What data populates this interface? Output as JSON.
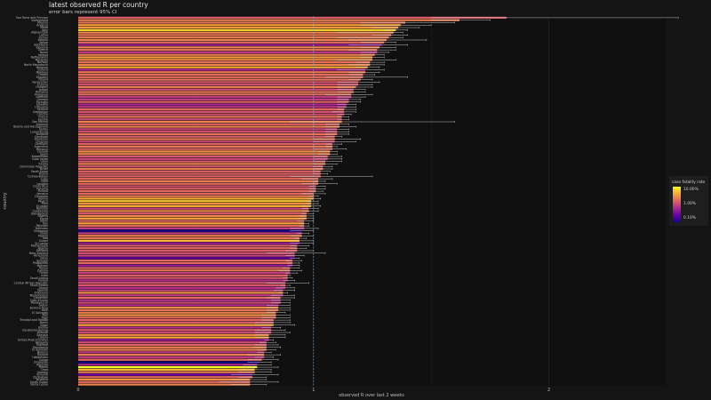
{
  "chart_data": {
    "type": "bar",
    "orientation": "horizontal",
    "title": "latest observed R per country",
    "subtitle": "error bars represent 95% CI",
    "xlabel": "observed R over last 2 weeks",
    "ylabel": "country",
    "xlim": [
      0,
      2.5
    ],
    "xticks": [
      "0",
      "1",
      "2"
    ],
    "reference_line": 1,
    "legend": {
      "title": "case fatality rate",
      "placement": "right",
      "ticks": [
        "10.00%",
        "1.00%",
        "0.10%"
      ],
      "scale_colors": [
        "#0d0887",
        "#6a00a8",
        "#b12a90",
        "#e16462",
        "#fca636",
        "#f0f921"
      ]
    },
    "series": [
      {
        "country": "Sao Tome and Principe",
        "r": 1.82,
        "lo": 1.5,
        "hi": 2.55,
        "cfr": 1.5
      },
      {
        "country": "Switzerland",
        "r": 1.62,
        "lo": 1.5,
        "hi": 1.75,
        "cfr": 3.0
      },
      {
        "country": "Albania",
        "r": 1.39,
        "lo": 1.2,
        "hi": 1.6,
        "cfr": 2.4
      },
      {
        "country": "Andorra",
        "r": 1.37,
        "lo": 1.2,
        "hi": 1.5,
        "cfr": 5.5
      },
      {
        "country": "Malta",
        "r": 1.36,
        "lo": 1.25,
        "hi": 1.45,
        "cfr": 4.5
      },
      {
        "country": "Italy",
        "r": 1.35,
        "lo": 1.3,
        "hi": 1.4,
        "cfr": 12.0
      },
      {
        "country": "Afghanistan",
        "r": 1.34,
        "lo": 1.1,
        "hi": 1.38,
        "cfr": 3.5
      },
      {
        "country": "Latvia",
        "r": 1.33,
        "lo": 1.25,
        "hi": 1.4,
        "cfr": 2.5
      },
      {
        "country": "Turkey",
        "r": 1.32,
        "lo": 1.1,
        "hi": 1.38,
        "cfr": 2.8
      },
      {
        "country": "Kosovo",
        "r": 1.31,
        "lo": 1.15,
        "hi": 1.48,
        "cfr": 3.0
      },
      {
        "country": "Belize",
        "r": 1.3,
        "lo": 1.2,
        "hi": 1.35,
        "cfr": 2.0
      },
      {
        "country": "Botswana",
        "r": 1.29,
        "lo": 1.15,
        "hi": 1.4,
        "cfr": 0.4
      },
      {
        "country": "Slovenia",
        "r": 1.28,
        "lo": 1.2,
        "hi": 1.35,
        "cfr": 3.2
      },
      {
        "country": "Greece",
        "r": 1.27,
        "lo": 1.15,
        "hi": 1.35,
        "cfr": 2.3
      },
      {
        "country": "Nepal",
        "r": 1.27,
        "lo": 1.2,
        "hi": 1.32,
        "cfr": 0.7
      },
      {
        "country": "Ireland",
        "r": 1.26,
        "lo": 1.2,
        "hi": 1.3,
        "cfr": 2.8
      },
      {
        "country": "Netherlands",
        "r": 1.25,
        "lo": 1.2,
        "hi": 1.3,
        "cfr": 5.0
      },
      {
        "country": "Mongolia",
        "r": 1.25,
        "lo": 1.1,
        "hi": 1.35,
        "cfr": 3.5
      },
      {
        "country": "Norway",
        "r": 1.24,
        "lo": 1.18,
        "hi": 1.3,
        "cfr": 2.2
      },
      {
        "country": "North Macedonia",
        "r": 1.24,
        "lo": 1.15,
        "hi": 1.3,
        "cfr": 3.3
      },
      {
        "country": "Belgium",
        "r": 1.23,
        "lo": 1.18,
        "hi": 1.28,
        "cfr": 6.5
      },
      {
        "country": "Iceland",
        "r": 1.22,
        "lo": 1.1,
        "hi": 1.3,
        "cfr": 0.6
      },
      {
        "country": "Moldova",
        "r": 1.22,
        "lo": 1.15,
        "hi": 1.28,
        "cfr": 2.6
      },
      {
        "country": "Croatia",
        "r": 1.21,
        "lo": 1.15,
        "hi": 1.26,
        "cfr": 2.2
      },
      {
        "country": "Eswatini",
        "r": 1.21,
        "lo": 1.05,
        "hi": 1.4,
        "cfr": 2.0
      },
      {
        "country": "Poland",
        "r": 1.2,
        "lo": 1.15,
        "hi": 1.25,
        "cfr": 2.4
      },
      {
        "country": "Kyrgyzstan",
        "r": 1.19,
        "lo": 1.1,
        "hi": 1.28,
        "cfr": 1.4
      },
      {
        "country": "Estonia",
        "r": 1.19,
        "lo": 1.1,
        "hi": 1.25,
        "cfr": 1.3
      },
      {
        "country": "Hungary",
        "r": 1.18,
        "lo": 1.1,
        "hi": 1.25,
        "cfr": 2.9
      },
      {
        "country": "Jordan",
        "r": 1.17,
        "lo": 1.1,
        "hi": 1.22,
        "cfr": 1.1
      },
      {
        "country": "Romania",
        "r": 1.17,
        "lo": 1.1,
        "hi": 1.22,
        "cfr": 2.5
      },
      {
        "country": "Paraguay",
        "r": 1.16,
        "lo": 1.05,
        "hi": 1.25,
        "cfr": 2.1
      },
      {
        "country": "Lebanon",
        "r": 1.16,
        "lo": 1.1,
        "hi": 1.22,
        "cfr": 0.8
      },
      {
        "country": "Georgia",
        "r": 1.15,
        "lo": 1.1,
        "hi": 1.2,
        "cfr": 0.8
      },
      {
        "country": "Portugal",
        "r": 1.15,
        "lo": 1.1,
        "hi": 1.2,
        "cfr": 1.7
      },
      {
        "country": "Slovakia",
        "r": 1.14,
        "lo": 1.1,
        "hi": 1.18,
        "cfr": 0.5
      },
      {
        "country": "Lithuania",
        "r": 1.14,
        "lo": 1.1,
        "hi": 1.18,
        "cfr": 0.7
      },
      {
        "country": "Ukraine",
        "r": 1.13,
        "lo": 1.1,
        "hi": 1.18,
        "cfr": 2.0
      },
      {
        "country": "Azerbaijan",
        "r": 1.13,
        "lo": 1.08,
        "hi": 1.18,
        "cfr": 1.3
      },
      {
        "country": "Czechia",
        "r": 1.13,
        "lo": 1.1,
        "hi": 1.16,
        "cfr": 1.1
      },
      {
        "country": "France",
        "r": 1.12,
        "lo": 1.1,
        "hi": 1.15,
        "cfr": 2.6
      },
      {
        "country": "Austria",
        "r": 1.12,
        "lo": 1.1,
        "hi": 1.15,
        "cfr": 1.0
      },
      {
        "country": "San Marino",
        "r": 1.12,
        "lo": 0.9,
        "hi": 1.6,
        "cfr": 3.3
      },
      {
        "country": "Armenia",
        "r": 1.11,
        "lo": 1.05,
        "hi": 1.15,
        "cfr": 1.7
      },
      {
        "country": "Bosnia and Herzegovina",
        "r": 1.11,
        "lo": 1.05,
        "hi": 1.18,
        "cfr": 3.0
      },
      {
        "country": "Serbia",
        "r": 1.1,
        "lo": 1.05,
        "hi": 1.15,
        "cfr": 1.0
      },
      {
        "country": "Luxembourg",
        "r": 1.1,
        "lo": 1.05,
        "hi": 1.15,
        "cfr": 1.2
      },
      {
        "country": "Bulgaria",
        "r": 1.1,
        "lo": 1.05,
        "hi": 1.15,
        "cfr": 2.5
      },
      {
        "country": "Denmark",
        "r": 1.09,
        "lo": 1.05,
        "hi": 1.12,
        "cfr": 1.5
      },
      {
        "country": "Honduras",
        "r": 1.09,
        "lo": 1.0,
        "hi": 1.2,
        "cfr": 2.8
      },
      {
        "country": "Uruguay",
        "r": 1.09,
        "lo": 1.0,
        "hi": 1.18,
        "cfr": 1.0
      },
      {
        "country": "Germany",
        "r": 1.08,
        "lo": 1.05,
        "hi": 1.12,
        "cfr": 1.8
      },
      {
        "country": "Argentina",
        "r": 1.08,
        "lo": 1.05,
        "hi": 1.1,
        "cfr": 2.7
      },
      {
        "country": "Morocco",
        "r": 1.08,
        "lo": 1.0,
        "hi": 1.14,
        "cfr": 1.7
      },
      {
        "country": "Canada",
        "r": 1.07,
        "lo": 1.02,
        "hi": 1.1,
        "cfr": 4.0
      },
      {
        "country": "Spain",
        "r": 1.07,
        "lo": 1.02,
        "hi": 1.1,
        "cfr": 3.0
      },
      {
        "country": "Kazakhstan",
        "r": 1.06,
        "lo": 1.0,
        "hi": 1.12,
        "cfr": 1.4
      },
      {
        "country": "Cabo Verde",
        "r": 1.06,
        "lo": 1.0,
        "hi": 1.12,
        "cfr": 1.0
      },
      {
        "country": "Libya",
        "r": 1.05,
        "lo": 1.0,
        "hi": 1.12,
        "cfr": 1.5
      },
      {
        "country": "Tunisia",
        "r": 1.05,
        "lo": 1.0,
        "hi": 1.1,
        "cfr": 3.0
      },
      {
        "country": "Dominican Republic",
        "r": 1.04,
        "lo": 1.0,
        "hi": 1.08,
        "cfr": 1.3
      },
      {
        "country": "Brazil",
        "r": 1.04,
        "lo": 1.0,
        "hi": 1.08,
        "cfr": 2.8
      },
      {
        "country": "South Korea",
        "r": 1.03,
        "lo": 1.0,
        "hi": 1.07,
        "cfr": 1.7
      },
      {
        "country": "Russia",
        "r": 1.03,
        "lo": 1.0,
        "hi": 1.06,
        "cfr": 1.7
      },
      {
        "country": "Guinea-Bissau",
        "r": 1.03,
        "lo": 0.9,
        "hi": 1.25,
        "cfr": 1.7
      },
      {
        "country": "Cuba",
        "r": 1.02,
        "lo": 0.95,
        "hi": 1.08,
        "cfr": 2.0
      },
      {
        "country": "Chile",
        "r": 1.02,
        "lo": 1.0,
        "hi": 1.05,
        "cfr": 2.8
      },
      {
        "country": "Lesotho",
        "r": 1.02,
        "lo": 0.95,
        "hi": 1.1,
        "cfr": 2.2
      },
      {
        "country": "Costa Rica",
        "r": 1.01,
        "lo": 0.98,
        "hi": 1.05,
        "cfr": 1.2
      },
      {
        "country": "Panama",
        "r": 1.01,
        "lo": 0.98,
        "hi": 1.05,
        "cfr": 1.8
      },
      {
        "country": "Finland",
        "r": 1.01,
        "lo": 0.98,
        "hi": 1.04,
        "cfr": 2.0
      },
      {
        "country": "Jamaica",
        "r": 1.0,
        "lo": 0.95,
        "hi": 1.05,
        "cfr": 1.8
      },
      {
        "country": "Colombia",
        "r": 1.0,
        "lo": 0.98,
        "hi": 1.02,
        "cfr": 3.0
      },
      {
        "country": "Bolivia",
        "r": 1.0,
        "lo": 0.97,
        "hi": 1.03,
        "cfr": 6.0
      },
      {
        "country": "Mexico",
        "r": 0.99,
        "lo": 0.97,
        "hi": 1.02,
        "cfr": 10.0
      },
      {
        "country": "Peru",
        "r": 0.99,
        "lo": 0.97,
        "hi": 1.02,
        "cfr": 3.8
      },
      {
        "country": "Ecuador",
        "r": 0.99,
        "lo": 0.95,
        "hi": 1.03,
        "cfr": 7.0
      },
      {
        "country": "Namibia",
        "r": 0.98,
        "lo": 0.95,
        "hi": 1.02,
        "cfr": 1.0
      },
      {
        "country": "Guatemala",
        "r": 0.98,
        "lo": 0.95,
        "hi": 1.02,
        "cfr": 3.5
      },
      {
        "country": "Bangladesh",
        "r": 0.97,
        "lo": 0.95,
        "hi": 1.0,
        "cfr": 1.5
      },
      {
        "country": "Algeria",
        "r": 0.97,
        "lo": 0.94,
        "hi": 1.0,
        "cfr": 3.4
      },
      {
        "country": "Egypt",
        "r": 0.97,
        "lo": 0.93,
        "hi": 1.0,
        "cfr": 5.5
      },
      {
        "country": "Japan",
        "r": 0.96,
        "lo": 0.93,
        "hi": 1.0,
        "cfr": 1.8
      },
      {
        "country": "Iran",
        "r": 0.96,
        "lo": 0.94,
        "hi": 0.98,
        "cfr": 5.5
      },
      {
        "country": "Pakistan",
        "r": 0.96,
        "lo": 0.94,
        "hi": 0.98,
        "cfr": 2.0
      },
      {
        "country": "Tajikistan",
        "r": 0.96,
        "lo": 0.9,
        "hi": 1.02,
        "cfr": 0.8
      },
      {
        "country": "Singapore",
        "r": 0.95,
        "lo": 0.9,
        "hi": 1.0,
        "cfr": 0.06
      },
      {
        "country": "Israel",
        "r": 0.95,
        "lo": 0.93,
        "hi": 0.98,
        "cfr": 0.8
      },
      {
        "country": "Malawi",
        "r": 0.95,
        "lo": 0.9,
        "hi": 1.0,
        "cfr": 3.0
      },
      {
        "country": "Iraq",
        "r": 0.94,
        "lo": 0.92,
        "hi": 0.97,
        "cfr": 2.3
      },
      {
        "country": "Sudan",
        "r": 0.94,
        "lo": 0.9,
        "hi": 1.0,
        "cfr": 7.5
      },
      {
        "country": "Sri Lanka",
        "r": 0.94,
        "lo": 0.9,
        "hi": 1.0,
        "cfr": 0.4
      },
      {
        "country": "Montenegro",
        "r": 0.93,
        "lo": 0.9,
        "hi": 0.98,
        "cfr": 1.5
      },
      {
        "country": "Nigeria",
        "r": 0.93,
        "lo": 0.9,
        "hi": 0.97,
        "cfr": 1.9
      },
      {
        "country": "Ethiopia",
        "r": 0.93,
        "lo": 0.88,
        "hi": 1.0,
        "cfr": 1.5
      },
      {
        "country": "New Zealand",
        "r": 0.92,
        "lo": 0.8,
        "hi": 1.05,
        "cfr": 1.2
      },
      {
        "country": "Venezuela",
        "r": 0.92,
        "lo": 0.88,
        "hi": 0.96,
        "cfr": 0.9
      },
      {
        "country": "Qatar",
        "r": 0.92,
        "lo": 0.9,
        "hi": 0.94,
        "cfr": 0.15
      },
      {
        "country": "Senegal",
        "r": 0.91,
        "lo": 0.88,
        "hi": 0.95,
        "cfr": 2.0
      },
      {
        "country": "Philippines",
        "r": 0.91,
        "lo": 0.89,
        "hi": 0.94,
        "cfr": 2.0
      },
      {
        "country": "Bahrain",
        "r": 0.91,
        "lo": 0.89,
        "hi": 0.94,
        "cfr": 0.35
      },
      {
        "country": "Kenya",
        "r": 0.9,
        "lo": 0.87,
        "hi": 0.94,
        "cfr": 1.7
      },
      {
        "country": "Zambia",
        "r": 0.9,
        "lo": 0.85,
        "hi": 0.95,
        "cfr": 2.5
      },
      {
        "country": "Oman",
        "r": 0.9,
        "lo": 0.88,
        "hi": 0.93,
        "cfr": 0.8
      },
      {
        "country": "India",
        "r": 0.89,
        "lo": 0.88,
        "hi": 0.9,
        "cfr": 1.6
      },
      {
        "country": "Saudi Arabia",
        "r": 0.89,
        "lo": 0.87,
        "hi": 0.91,
        "cfr": 1.4
      },
      {
        "country": "Kuwait",
        "r": 0.89,
        "lo": 0.87,
        "hi": 0.92,
        "cfr": 0.6
      },
      {
        "country": "Central African Republic",
        "r": 0.88,
        "lo": 0.8,
        "hi": 0.98,
        "cfr": 1.3
      },
      {
        "country": "Saudi Arabia",
        "r": 0.88,
        "lo": 0.86,
        "hi": 0.9,
        "cfr": 1.4
      },
      {
        "country": "Ghana",
        "r": 0.88,
        "lo": 0.84,
        "hi": 0.92,
        "cfr": 0.6
      },
      {
        "country": "Uganda",
        "r": 0.87,
        "lo": 0.83,
        "hi": 0.92,
        "cfr": 0.9
      },
      {
        "country": "Indonesia",
        "r": 0.87,
        "lo": 0.85,
        "hi": 0.89,
        "cfr": 3.8
      },
      {
        "country": "Mozambique",
        "r": 0.87,
        "lo": 0.82,
        "hi": 0.92,
        "cfr": 0.7
      },
      {
        "country": "Cameroon",
        "r": 0.86,
        "lo": 0.8,
        "hi": 0.92,
        "cfr": 2.1
      },
      {
        "country": "Cote d'Ivoire",
        "r": 0.86,
        "lo": 0.82,
        "hi": 0.9,
        "cfr": 0.6
      },
      {
        "country": "Madagascar",
        "r": 0.86,
        "lo": 0.82,
        "hi": 0.9,
        "cfr": 1.1
      },
      {
        "country": "Gabon",
        "r": 0.85,
        "lo": 0.8,
        "hi": 0.9,
        "cfr": 0.6
      },
      {
        "country": "Burkina Faso",
        "r": 0.85,
        "lo": 0.8,
        "hi": 0.9,
        "cfr": 4.0
      },
      {
        "country": "Haiti",
        "r": 0.85,
        "lo": 0.8,
        "hi": 0.9,
        "cfr": 2.3
      },
      {
        "country": "El Salvador",
        "r": 0.84,
        "lo": 0.8,
        "hi": 0.88,
        "cfr": 2.9
      },
      {
        "country": "Mali",
        "r": 0.84,
        "lo": 0.78,
        "hi": 0.9,
        "cfr": 4.5
      },
      {
        "country": "Togo",
        "r": 0.84,
        "lo": 0.78,
        "hi": 0.9,
        "cfr": 2.0
      },
      {
        "country": "Trinidad and Tobago",
        "r": 0.83,
        "lo": 0.78,
        "hi": 0.9,
        "cfr": 1.8
      },
      {
        "country": "Benin",
        "r": 0.83,
        "lo": 0.75,
        "hi": 0.9,
        "cfr": 1.5
      },
      {
        "country": "Niger",
        "r": 0.83,
        "lo": 0.75,
        "hi": 0.92,
        "cfr": 6.0
      },
      {
        "country": "Guinea",
        "r": 0.82,
        "lo": 0.78,
        "hi": 0.86,
        "cfr": 0.6
      },
      {
        "country": "Equatorial Guinea",
        "r": 0.82,
        "lo": 0.75,
        "hi": 0.88,
        "cfr": 1.6
      },
      {
        "country": "Djibouti",
        "r": 0.82,
        "lo": 0.75,
        "hi": 0.9,
        "cfr": 1.0
      },
      {
        "country": "Somalia",
        "r": 0.81,
        "lo": 0.75,
        "hi": 0.88,
        "cfr": 3.5
      },
      {
        "country": "Liberia",
        "r": 0.81,
        "lo": 0.75,
        "hi": 0.88,
        "cfr": 6.0
      },
      {
        "country": "United Arab Emirates",
        "r": 0.81,
        "lo": 0.79,
        "hi": 0.83,
        "cfr": 0.4
      },
      {
        "country": "Malaysia",
        "r": 0.8,
        "lo": 0.77,
        "hi": 0.84,
        "cfr": 1.1
      },
      {
        "country": "Thailand",
        "r": 0.8,
        "lo": 0.75,
        "hi": 0.85,
        "cfr": 1.7
      },
      {
        "country": "Mauritania",
        "r": 0.8,
        "lo": 0.74,
        "hi": 0.86,
        "cfr": 3.0
      },
      {
        "country": "El Salvador",
        "r": 0.8,
        "lo": 0.76,
        "hi": 0.84,
        "cfr": 2.8
      },
      {
        "country": "Belarus",
        "r": 0.79,
        "lo": 0.76,
        "hi": 0.82,
        "cfr": 0.8
      },
      {
        "country": "Guyana",
        "r": 0.79,
        "lo": 0.72,
        "hi": 0.86,
        "cfr": 3.0
      },
      {
        "country": "Uzbekistan",
        "r": 0.79,
        "lo": 0.75,
        "hi": 0.83,
        "cfr": 0.7
      },
      {
        "country": "Congo",
        "r": 0.78,
        "lo": 0.72,
        "hi": 0.85,
        "cfr": 2.0
      },
      {
        "country": "Singapore",
        "r": 0.77,
        "lo": 0.72,
        "hi": 0.82,
        "cfr": 0.05
      },
      {
        "country": "Rwanda",
        "r": 0.76,
        "lo": 0.7,
        "hi": 0.82,
        "cfr": 0.5
      },
      {
        "country": "Yemen",
        "r": 0.76,
        "lo": 0.7,
        "hi": 0.85,
        "cfr": 25.0
      },
      {
        "country": "Chad",
        "r": 0.75,
        "lo": 0.68,
        "hi": 0.82,
        "cfr": 7.5
      },
      {
        "country": "Gambia",
        "r": 0.75,
        "lo": 0.68,
        "hi": 0.82,
        "cfr": 3.0
      },
      {
        "country": "Burundi",
        "r": 0.74,
        "lo": 0.65,
        "hi": 0.85,
        "cfr": 0.2
      },
      {
        "country": "Zimbabwe",
        "r": 0.74,
        "lo": 0.68,
        "hi": 0.8,
        "cfr": 2.0
      },
      {
        "country": "Tanzania",
        "r": 0.73,
        "lo": 0.65,
        "hi": 0.8,
        "cfr": 4.0
      },
      {
        "country": "South Sudan",
        "r": 0.73,
        "lo": 0.6,
        "hi": 0.85,
        "cfr": 1.9
      },
      {
        "country": "Sierra Leone",
        "r": 0.73,
        "lo": 0.65,
        "hi": 0.8,
        "cfr": 3.2
      }
    ]
  }
}
